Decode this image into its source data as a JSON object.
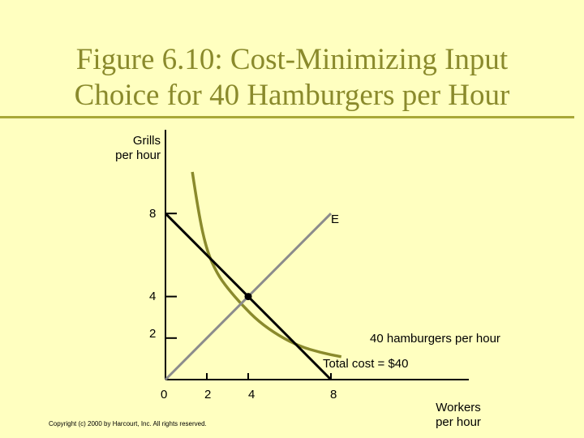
{
  "slide": {
    "title_line1": "Figure 6.10: Cost-Minimizing Input",
    "title_line2": "Choice for 40 Hamburgers per Hour",
    "copyright": "Copyright (c) 2000 by Harcourt, Inc. All rights reserved."
  },
  "colors": {
    "background": "#ffffc0",
    "title": "#8a8a2c",
    "isoquant": "#8a8a2c",
    "expansion_path": "#8c8c8c",
    "isocost": "#000000"
  },
  "chart_data": {
    "type": "line",
    "ylabel_line1": "Grills",
    "ylabel_line2": "per hour",
    "xlabel_line1": "Workers",
    "xlabel_line2": "per hour",
    "origin_label": "0",
    "x_ticks": [
      "2",
      "4",
      "8"
    ],
    "y_ticks": [
      "8",
      "4",
      "2"
    ],
    "xlim": [
      0,
      10
    ],
    "ylim": [
      0,
      10.5
    ],
    "series": [
      {
        "name": "40 hamburgers per hour",
        "kind": "isoquant",
        "points": [
          [
            1.3,
            10.0
          ],
          [
            1.6,
            8.0
          ],
          [
            2.0,
            6.2
          ],
          [
            2.5,
            5.1
          ],
          [
            3.0,
            4.4
          ],
          [
            3.7,
            3.6
          ],
          [
            4.5,
            2.8
          ],
          [
            5.5,
            2.1
          ],
          [
            6.5,
            1.6
          ],
          [
            7.5,
            1.3
          ],
          [
            8.5,
            1.1
          ]
        ]
      },
      {
        "name": "Total cost = $40",
        "kind": "isocost",
        "points": [
          [
            0,
            8
          ],
          [
            8,
            0
          ]
        ]
      },
      {
        "name": "E",
        "kind": "expansion-path",
        "points": [
          [
            0,
            0
          ],
          [
            8,
            8
          ]
        ]
      }
    ],
    "equilibrium": {
      "x": 4,
      "y": 4
    },
    "annotations": {
      "expansion_label": "E",
      "isoquant_label": "40 hamburgers per hour",
      "isocost_label": "Total cost = $40"
    }
  }
}
